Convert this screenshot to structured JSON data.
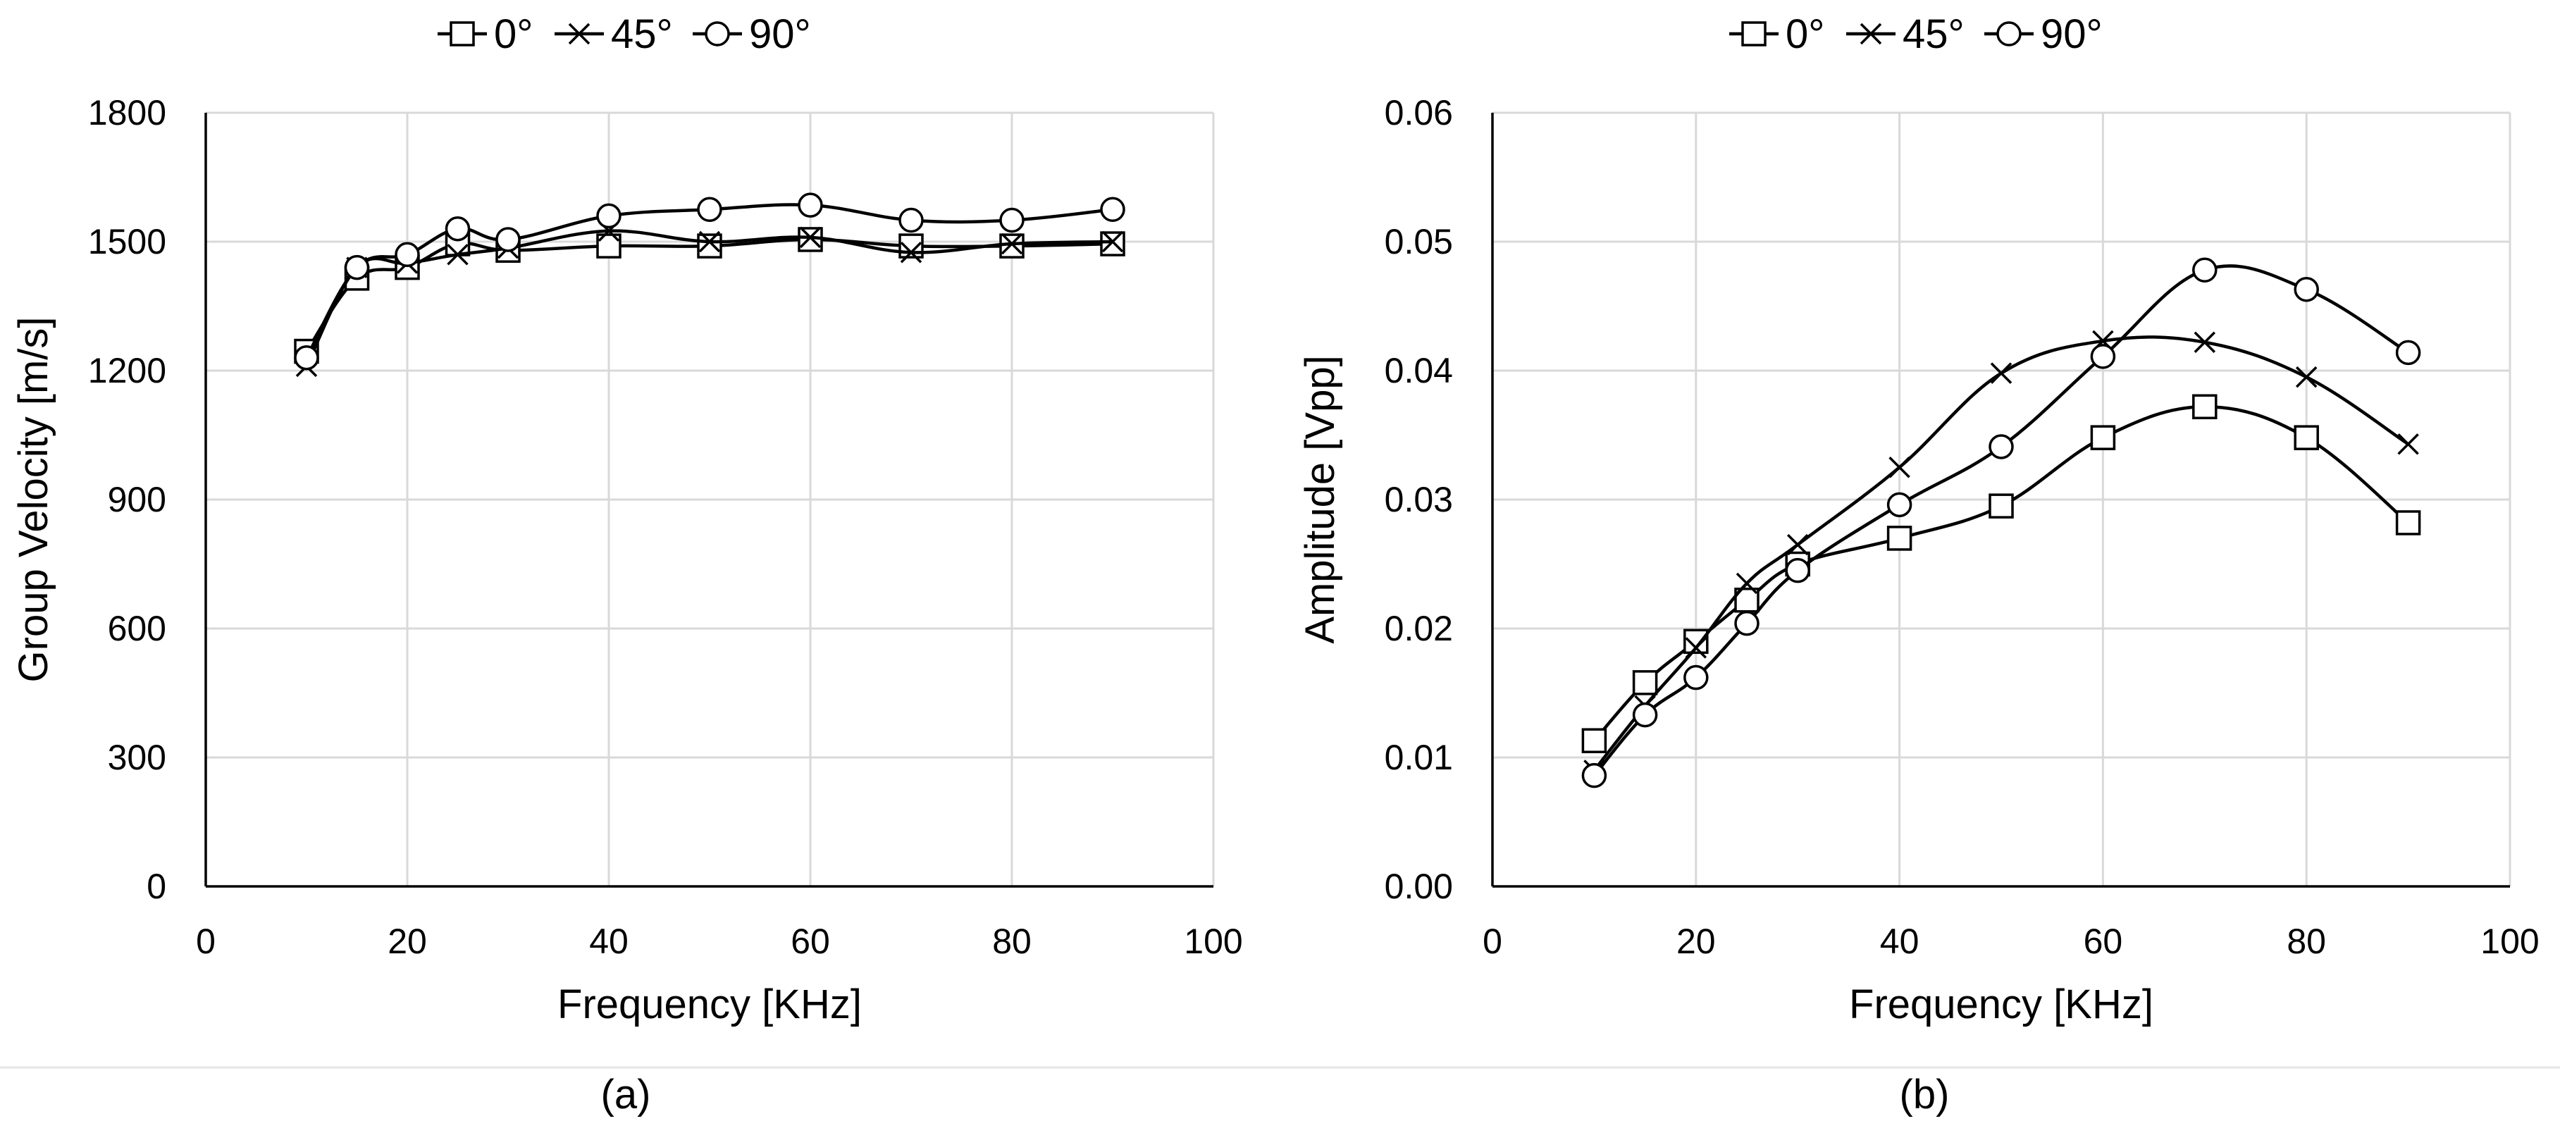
{
  "chart_data": [
    {
      "panel": "(a)",
      "type": "line",
      "smooth": true,
      "xlabel": "Frequency [KHz]",
      "ylabel": "Group Velocity [m/s]",
      "xlim": [
        0,
        100
      ],
      "ylim": [
        0,
        1800
      ],
      "xticks": [
        0,
        20,
        40,
        60,
        80,
        100
      ],
      "yticks": [
        0,
        300,
        600,
        900,
        1200,
        1500,
        1800
      ],
      "grid": true,
      "legend_position": "top-center",
      "x": [
        10,
        15,
        20,
        25,
        30,
        40,
        50,
        60,
        70,
        80,
        90
      ],
      "series": [
        {
          "name": "0°",
          "marker": "square",
          "values": [
            1245,
            1415,
            1440,
            1495,
            1480,
            1490,
            1490,
            1505,
            1490,
            1490,
            1495
          ]
        },
        {
          "name": "45°",
          "marker": "x",
          "values": [
            1210,
            1440,
            1450,
            1470,
            1485,
            1525,
            1500,
            1510,
            1475,
            1495,
            1500
          ]
        },
        {
          "name": "90°",
          "marker": "circle",
          "values": [
            1230,
            1440,
            1470,
            1530,
            1505,
            1560,
            1575,
            1585,
            1550,
            1550,
            1575
          ]
        }
      ]
    },
    {
      "panel": "(b)",
      "type": "line",
      "smooth": true,
      "xlabel": "Frequency [KHz]",
      "ylabel": "Amplitude [Vpp]",
      "xlim": [
        0,
        100
      ],
      "ylim": [
        0,
        0.06
      ],
      "xticks": [
        0,
        20,
        40,
        60,
        80,
        100
      ],
      "yticks": [
        0,
        0.01,
        0.02,
        0.03,
        0.04,
        0.05,
        0.06
      ],
      "grid": true,
      "legend_position": "top-center",
      "x": [
        10,
        15,
        20,
        25,
        30,
        40,
        50,
        60,
        70,
        80,
        90
      ],
      "series": [
        {
          "name": "0°",
          "marker": "square",
          "values": [
            0.0113,
            0.0158,
            0.019,
            0.0222,
            0.025,
            0.027,
            0.0295,
            0.0348,
            0.0372,
            0.0348,
            0.0282
          ]
        },
        {
          "name": "45°",
          "marker": "x",
          "values": [
            0.009,
            0.014,
            0.0185,
            0.0235,
            0.0265,
            0.0325,
            0.0398,
            0.0423,
            0.0422,
            0.0395,
            0.0343
          ]
        },
        {
          "name": "90°",
          "marker": "circle",
          "values": [
            0.0086,
            0.0133,
            0.0162,
            0.0204,
            0.0245,
            0.0296,
            0.0341,
            0.0411,
            0.0478,
            0.0463,
            0.0414
          ]
        }
      ]
    }
  ]
}
